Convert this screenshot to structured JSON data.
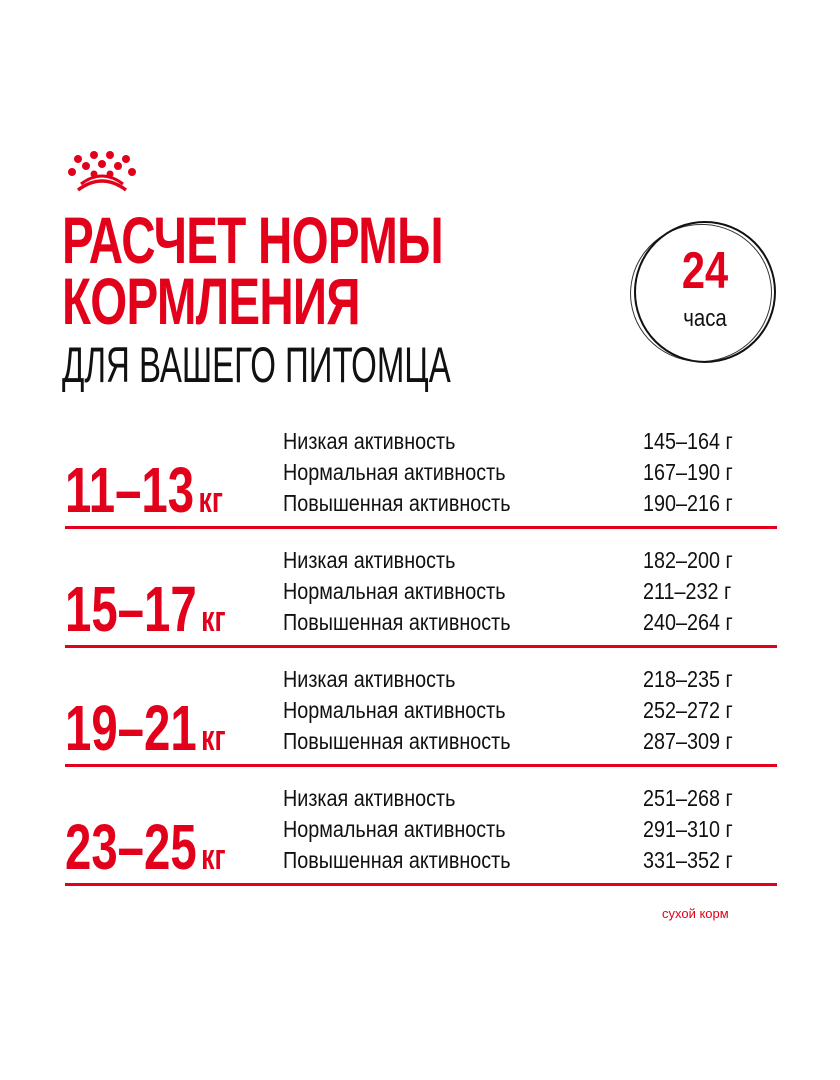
{
  "brand": {
    "logo": "crown-logo",
    "color": "#e2001a"
  },
  "header": {
    "title_line1": "РАСЧЕТ НОРМЫ",
    "title_line2": "КОРМЛЕНИЯ",
    "subtitle": "ДЛЯ ВАШЕГО ПИТОМЦА"
  },
  "badge": {
    "number": "24",
    "unit": "часа"
  },
  "groups": [
    {
      "weight": "11–13",
      "unit": "кг",
      "rows": [
        {
          "activity": "Низкая активность",
          "amount": "145–164 г"
        },
        {
          "activity": "Нормальная активность",
          "amount": "167–190 г"
        },
        {
          "activity": "Повышенная активность",
          "amount": "190–216 г"
        }
      ]
    },
    {
      "weight": "15–17",
      "unit": "кг",
      "rows": [
        {
          "activity": "Низкая активность",
          "amount": "182–200 г"
        },
        {
          "activity": "Нормальная активность",
          "amount": "211–232 г"
        },
        {
          "activity": "Повышенная активность",
          "amount": "240–264 г"
        }
      ]
    },
    {
      "weight": "19–21",
      "unit": "кг",
      "rows": [
        {
          "activity": "Низкая активность",
          "amount": "218–235 г"
        },
        {
          "activity": "Нормальная активность",
          "amount": "252–272 г"
        },
        {
          "activity": "Повышенная активность",
          "amount": "287–309 г"
        }
      ]
    },
    {
      "weight": "23–25",
      "unit": "кг",
      "rows": [
        {
          "activity": "Низкая активность",
          "amount": "251–268 г"
        },
        {
          "activity": "Нормальная активность",
          "amount": "291–310 г"
        },
        {
          "activity": "Повышенная активность",
          "amount": "331–352 г"
        }
      ]
    }
  ],
  "footnote": "сухой корм"
}
